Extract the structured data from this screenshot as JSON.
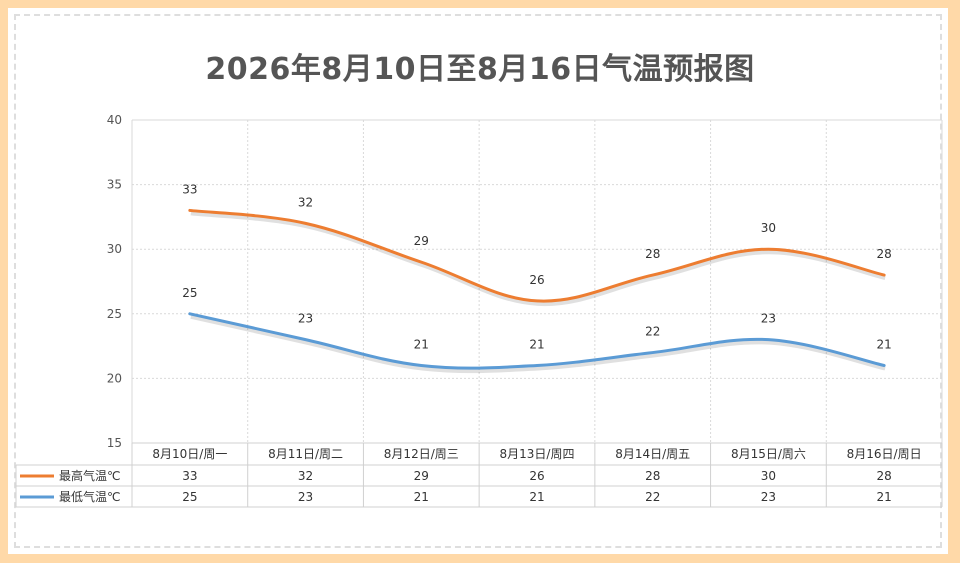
{
  "chart_data": {
    "type": "line",
    "title": "2026年8月10日至8月16日气温预报图",
    "categories": [
      "8月10日/周一",
      "8月11日/周二",
      "8月12日/周三",
      "8月13日/周四",
      "8月14日/周五",
      "8月15日/周六",
      "8月16日/周日"
    ],
    "ylim": [
      15,
      40
    ],
    "yticks": [
      15,
      20,
      25,
      30,
      35,
      40
    ],
    "grid": true,
    "legend_placement": "bottom data table",
    "series": [
      {
        "name": "最高气温℃",
        "color": "#ed7d31",
        "values": [
          33,
          32,
          29,
          26,
          28,
          30,
          28
        ]
      },
      {
        "name": "最低气温℃",
        "color": "#5b9bd5",
        "values": [
          25,
          23,
          21,
          21,
          22,
          23,
          21
        ]
      }
    ]
  }
}
